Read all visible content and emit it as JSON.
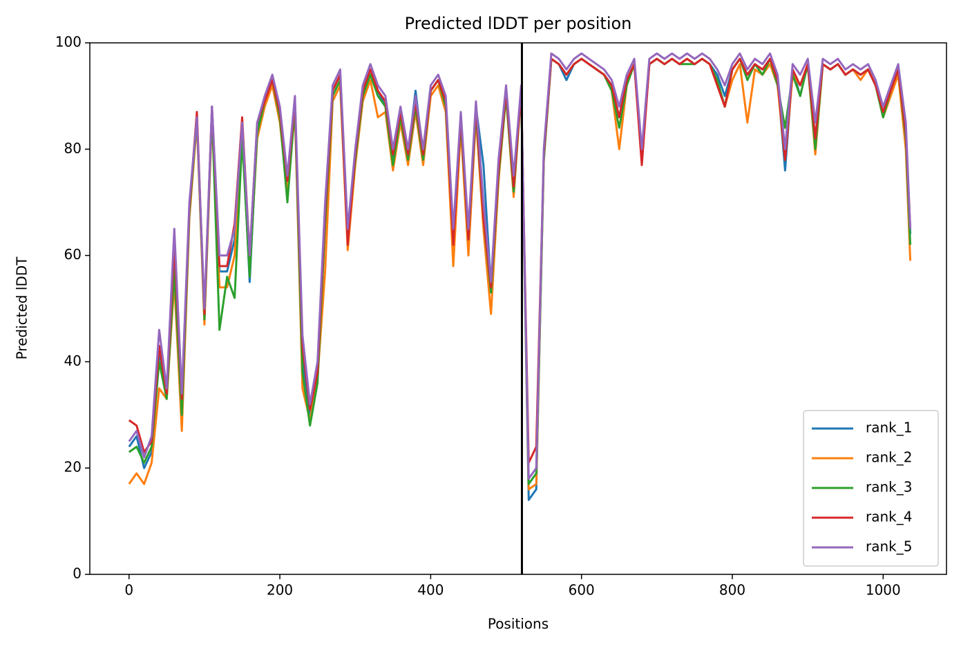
{
  "chart_data": {
    "type": "line",
    "title": "Predicted lDDT per position",
    "xlabel": "Positions",
    "ylabel": "Predicted lDDT",
    "x": [
      0,
      10,
      20,
      30,
      40,
      50,
      60,
      70,
      80,
      90,
      100,
      110,
      120,
      130,
      140,
      150,
      160,
      170,
      180,
      190,
      200,
      210,
      220,
      230,
      240,
      250,
      260,
      270,
      280,
      290,
      300,
      310,
      320,
      330,
      340,
      350,
      360,
      370,
      380,
      390,
      400,
      410,
      420,
      430,
      440,
      450,
      460,
      470,
      480,
      490,
      500,
      510,
      520,
      530,
      540,
      550,
      560,
      570,
      580,
      590,
      600,
      610,
      620,
      630,
      640,
      650,
      660,
      670,
      680,
      690,
      700,
      710,
      720,
      730,
      740,
      750,
      760,
      770,
      780,
      790,
      800,
      810,
      820,
      830,
      840,
      850,
      860,
      870,
      880,
      890,
      900,
      910,
      920,
      930,
      940,
      950,
      960,
      970,
      980,
      990,
      1000,
      1010,
      1020,
      1030,
      1036
    ],
    "series": [
      {
        "name": "rank_1",
        "color": "#1f77b4",
        "values": [
          24,
          26,
          20,
          23,
          42,
          34,
          60,
          31,
          68,
          86,
          48,
          88,
          57,
          57,
          63,
          84,
          55,
          84,
          89,
          93,
          86,
          73,
          88,
          40,
          30,
          37,
          66,
          91,
          94,
          63,
          78,
          91,
          95,
          91,
          88,
          78,
          87,
          79,
          91,
          79,
          91,
          93,
          88,
          62,
          86,
          63,
          88,
          77,
          54,
          77,
          91,
          73,
          91,
          14,
          16,
          78,
          97,
          96,
          93,
          96,
          97,
          96,
          95,
          94,
          92,
          86,
          93,
          96,
          79,
          96,
          97,
          96,
          97,
          96,
          97,
          96,
          97,
          96,
          94,
          90,
          95,
          97,
          94,
          96,
          95,
          97,
          93,
          76,
          95,
          90,
          96,
          82,
          96,
          95,
          96,
          94,
          95,
          94,
          95,
          92,
          86,
          91,
          95,
          83,
          64
        ]
      },
      {
        "name": "rank_2",
        "color": "#ff7f0e",
        "values": [
          17,
          19,
          17,
          21,
          35,
          33,
          55,
          27,
          67,
          85,
          47,
          86,
          54,
          54,
          60,
          83,
          57,
          82,
          88,
          92,
          85,
          72,
          87,
          35,
          29,
          37,
          57,
          89,
          92,
          61,
          77,
          89,
          93,
          86,
          87,
          76,
          85,
          77,
          87,
          77,
          90,
          92,
          87,
          58,
          84,
          60,
          86,
          65,
          49,
          74,
          90,
          71,
          91,
          16,
          17,
          78,
          97,
          96,
          94,
          96,
          97,
          96,
          95,
          94,
          91,
          80,
          92,
          96,
          78,
          96,
          97,
          96,
          97,
          96,
          97,
          96,
          97,
          96,
          92,
          88,
          93,
          96,
          85,
          95,
          94,
          96,
          92,
          78,
          94,
          92,
          96,
          79,
          96,
          95,
          96,
          94,
          95,
          93,
          95,
          92,
          86,
          90,
          94,
          80,
          59
        ]
      },
      {
        "name": "rank_3",
        "color": "#2ca02c",
        "values": [
          23,
          24,
          21,
          24,
          40,
          33,
          57,
          30,
          68,
          86,
          48,
          87,
          46,
          56,
          52,
          82,
          56,
          83,
          89,
          93,
          86,
          70,
          88,
          38,
          28,
          36,
          66,
          90,
          93,
          63,
          78,
          90,
          94,
          90,
          88,
          77,
          86,
          78,
          88,
          78,
          91,
          93,
          88,
          63,
          85,
          63,
          87,
          67,
          53,
          75,
          90,
          72,
          91,
          17,
          19,
          78,
          97,
          96,
          94,
          96,
          97,
          96,
          95,
          94,
          91,
          84,
          92,
          96,
          79,
          96,
          97,
          96,
          97,
          96,
          96,
          96,
          97,
          96,
          93,
          88,
          95,
          97,
          93,
          96,
          94,
          97,
          92,
          84,
          94,
          90,
          96,
          80,
          96,
          95,
          96,
          94,
          95,
          94,
          95,
          92,
          86,
          91,
          95,
          82,
          62
        ]
      },
      {
        "name": "rank_4",
        "color": "#d62728",
        "values": [
          29,
          28,
          23,
          25,
          43,
          34,
          62,
          33,
          69,
          87,
          49,
          88,
          58,
          58,
          66,
          86,
          60,
          85,
          89,
          93,
          87,
          74,
          89,
          43,
          31,
          38,
          68,
          91,
          94,
          62,
          79,
          91,
          95,
          91,
          89,
          79,
          87,
          79,
          89,
          79,
          91,
          93,
          89,
          62,
          86,
          63,
          88,
          67,
          54,
          76,
          91,
          73,
          91,
          21,
          24,
          79,
          97,
          96,
          94,
          96,
          97,
          96,
          95,
          94,
          92,
          86,
          93,
          96,
          77,
          96,
          97,
          96,
          97,
          96,
          97,
          96,
          97,
          96,
          92,
          88,
          95,
          97,
          94,
          96,
          95,
          97,
          93,
          78,
          95,
          92,
          96,
          82,
          96,
          95,
          96,
          94,
          95,
          94,
          95,
          92,
          87,
          91,
          95,
          83,
          65
        ]
      },
      {
        "name": "rank_5",
        "color": "#9467bd",
        "values": [
          25,
          27,
          22,
          26,
          46,
          35,
          65,
          34,
          70,
          86,
          50,
          88,
          60,
          60,
          65,
          85,
          60,
          85,
          90,
          94,
          88,
          75,
          90,
          45,
          32,
          40,
          70,
          92,
          95,
          65,
          80,
          92,
          96,
          92,
          90,
          80,
          88,
          80,
          90,
          80,
          92,
          94,
          90,
          65,
          87,
          65,
          89,
          70,
          55,
          78,
          92,
          75,
          92,
          18,
          20,
          80,
          98,
          97,
          95,
          97,
          98,
          97,
          96,
          95,
          93,
          88,
          94,
          97,
          80,
          97,
          98,
          97,
          98,
          97,
          98,
          97,
          98,
          97,
          95,
          92,
          96,
          98,
          95,
          97,
          96,
          98,
          94,
          80,
          96,
          94,
          97,
          85,
          97,
          96,
          97,
          95,
          96,
          95,
          96,
          93,
          88,
          92,
          96,
          85,
          65
        ]
      }
    ],
    "vline": 521,
    "xlim": [
      -52,
      1084
    ],
    "xticks": [
      0,
      200,
      400,
      600,
      800,
      1000
    ],
    "ylim": [
      0,
      100
    ],
    "yticks": [
      0,
      20,
      40,
      60,
      80,
      100
    ],
    "legend": "lower right"
  }
}
